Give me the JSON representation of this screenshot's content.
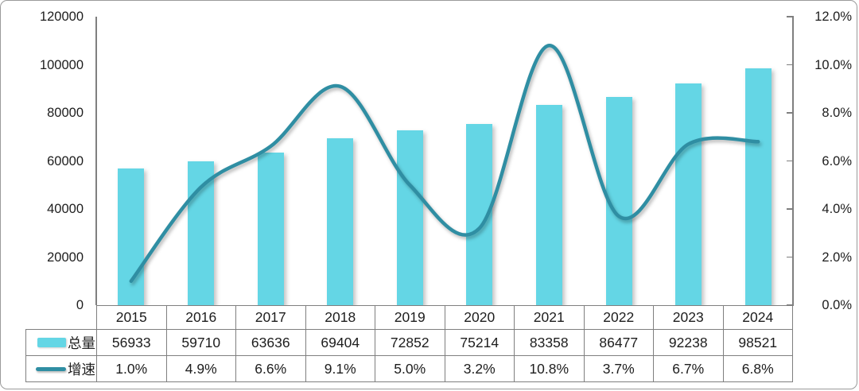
{
  "chart_data": {
    "type": "combo-bar-line",
    "title": "",
    "categories": [
      "2015",
      "2016",
      "2017",
      "2018",
      "2019",
      "2020",
      "2021",
      "2022",
      "2023",
      "2024"
    ],
    "series": [
      {
        "key": "total",
        "name": "总量",
        "type": "bar",
        "axis": "left",
        "color": "#64D6E5",
        "values": [
          56933,
          59710,
          63636,
          69404,
          72852,
          75214,
          83358,
          86477,
          92238,
          98521
        ],
        "labels": [
          "56933",
          "59710",
          "63636",
          "69404",
          "72852",
          "75214",
          "83358",
          "86477",
          "92238",
          "98521"
        ]
      },
      {
        "key": "growth",
        "name": "增速",
        "type": "line",
        "axis": "right",
        "color": "#2F8EA3",
        "smooth": true,
        "values": [
          1.0,
          4.9,
          6.6,
          9.1,
          5.0,
          3.2,
          10.8,
          3.7,
          6.7,
          6.8
        ],
        "labels": [
          "1.0%",
          "4.9%",
          "6.6%",
          "9.1%",
          "5.0%",
          "3.2%",
          "10.8%",
          "3.7%",
          "6.7%",
          "6.8%"
        ]
      }
    ],
    "left_axis": {
      "min": 0,
      "max": 120000,
      "step": 20000,
      "tick_labels": [
        "0",
        "20000",
        "40000",
        "60000",
        "80000",
        "100000",
        "120000"
      ]
    },
    "right_axis": {
      "min": 0,
      "max": 12,
      "step": 2,
      "tick_labels": [
        "0.0%",
        "2.0%",
        "4.0%",
        "6.0%",
        "8.0%",
        "10.0%",
        "12.0%"
      ]
    },
    "grid": false,
    "legend_position": "table-left"
  },
  "colors": {
    "bar": "#64D6E5",
    "line": "#2F8EA3",
    "grid_border": "#7F7F7F",
    "text": "#1D1D1D"
  }
}
